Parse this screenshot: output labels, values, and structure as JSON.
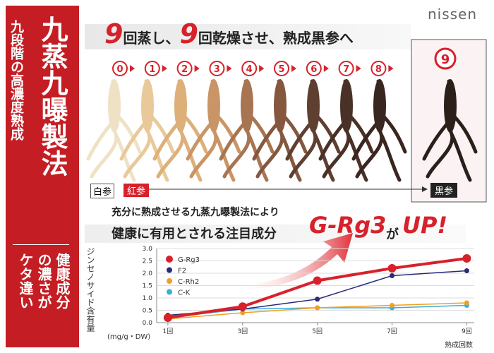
{
  "brand": "nissen",
  "side": {
    "title": "九蒸九曝製法",
    "subtitle": "九段階の高濃度熟成",
    "note": [
      "健康成分",
      "の濃さが",
      "ケタ違い"
    ]
  },
  "banner": {
    "parts": [
      "9",
      "回蒸し、",
      "9",
      "回乾燥させ、熟成黒参へ"
    ]
  },
  "steps": [
    "0",
    "1",
    "2",
    "3",
    "4",
    "5",
    "6",
    "7",
    "8"
  ],
  "final_step": "9",
  "labels": {
    "white": "白参",
    "red": "紅参",
    "black": "黒参"
  },
  "headline": {
    "line1": "充分に熟成させる九蒸九曝製法により",
    "line2": "健康に有用とされる注目成分",
    "highlight": "G-Rg3",
    "particle": "が",
    "up": "UP!"
  },
  "chart_data": {
    "type": "line",
    "y_label": "ジンセノサイド含有量",
    "y_unit": "(mg/g・DW)",
    "x_label": "熟成回数",
    "x": [
      1,
      3,
      5,
      7,
      9
    ],
    "xlim": [
      0.7,
      9.2
    ],
    "xticks": [
      {
        "value": 1,
        "label": "1回"
      },
      {
        "value": 3,
        "label": "3回"
      },
      {
        "value": 5,
        "label": "5回"
      },
      {
        "value": 7,
        "label": "7回"
      },
      {
        "value": 9,
        "label": "9回"
      }
    ],
    "ylim": [
      0,
      3
    ],
    "yticks": [
      {
        "value": 0,
        "label": "0.0"
      },
      0.5,
      {
        "value": 1,
        "label": "1.0"
      },
      1.5,
      {
        "value": 2,
        "label": "2.0"
      },
      2.5,
      {
        "value": 3,
        "label": "3.0"
      }
    ],
    "series": [
      {
        "name": "G-Rg3",
        "color": "#d7212b",
        "values": [
          0.2,
          0.65,
          1.7,
          2.2,
          2.6
        ]
      },
      {
        "name": "F2",
        "color": "#2a2a7a",
        "values": [
          0.3,
          0.55,
          0.95,
          1.9,
          2.1
        ]
      },
      {
        "name": "C-Rh2",
        "color": "#f0a020",
        "values": [
          0.15,
          0.4,
          0.6,
          0.7,
          0.8
        ]
      },
      {
        "name": "C-K",
        "color": "#3aaed8",
        "values": [
          0.2,
          0.55,
          0.6,
          0.6,
          0.7
        ]
      }
    ]
  }
}
